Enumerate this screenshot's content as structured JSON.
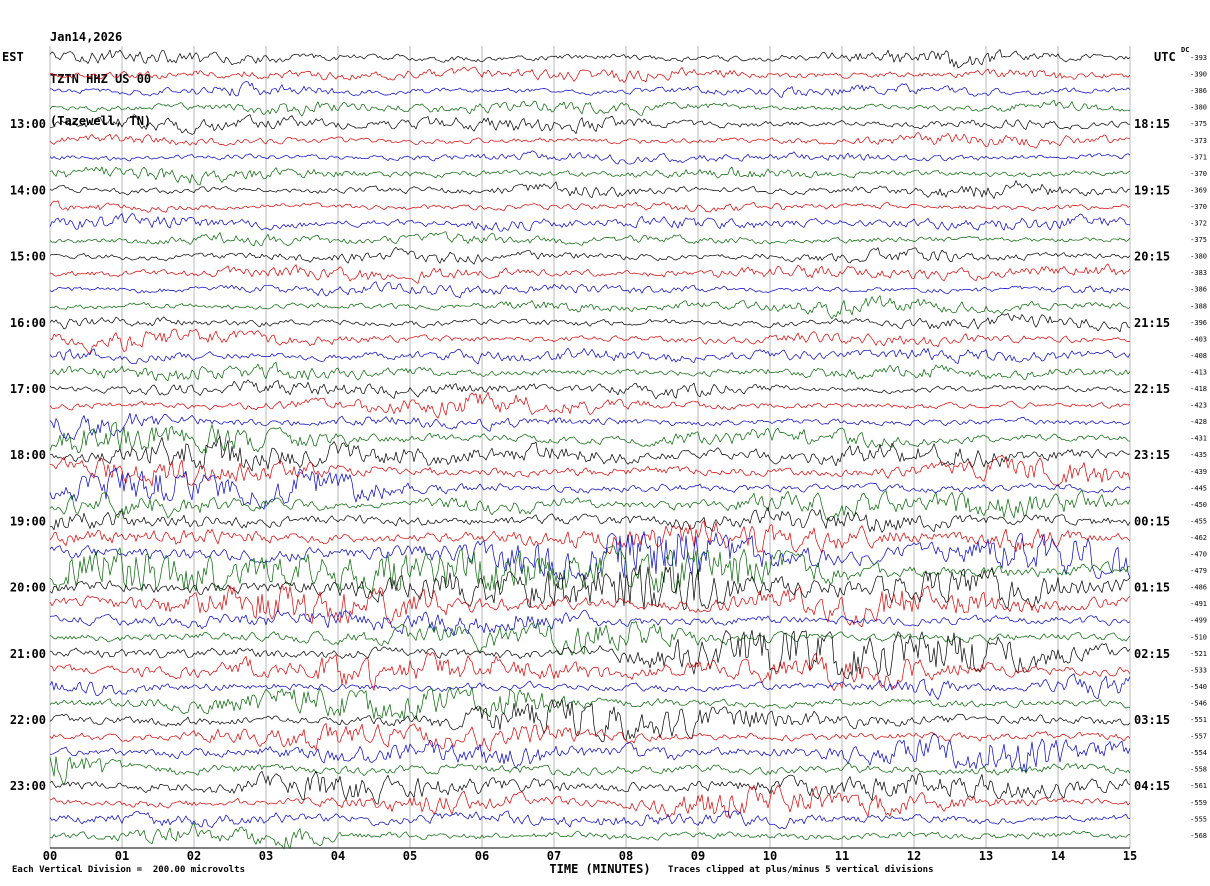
{
  "title": {
    "date": "Jan14,2026",
    "station": "TZTN HHZ US 00",
    "location": "(Tazewell, TN)"
  },
  "axes": {
    "left_header": "EST",
    "right_header": "UTC",
    "dc_header": "DC",
    "x_ticks": [
      "00",
      "01",
      "02",
      "03",
      "04",
      "05",
      "06",
      "07",
      "08",
      "09",
      "10",
      "11",
      "12",
      "13",
      "14",
      "15"
    ],
    "x_label": "TIME (MINUTES)"
  },
  "footer": {
    "division_note": "Each Vertical Division =  200.00 microvolts",
    "clip_note": "Traces clipped at plus/minus 5 vertical divisions"
  },
  "chart_data": {
    "type": "line",
    "subtype": "helicorder-seismogram",
    "minutes_per_line": 15,
    "x_range": [
      0,
      15
    ],
    "clip_divisions": 5,
    "microvolts_per_division": 200.0,
    "colors_cycle": [
      "#000000",
      "#dd0000",
      "#0000cc",
      "#006600"
    ],
    "rows": [
      {
        "est": "",
        "utc": "",
        "dc": -393,
        "amp": 3.0,
        "burst": 1.5
      },
      {
        "est": "",
        "utc": "",
        "dc": -390,
        "amp": 3.0,
        "burst": 1.5
      },
      {
        "est": "",
        "utc": "",
        "dc": -386,
        "amp": 2.8,
        "burst": 1.5
      },
      {
        "est": "",
        "utc": "",
        "dc": -380,
        "amp": 2.8,
        "burst": 1.5
      },
      {
        "est": "13:00",
        "utc": "18:15",
        "dc": -375,
        "amp": 3.0,
        "burst": 1.6
      },
      {
        "est": "",
        "utc": "",
        "dc": -373,
        "amp": 2.9,
        "burst": 1.5
      },
      {
        "est": "",
        "utc": "",
        "dc": -371,
        "amp": 2.8,
        "burst": 1.5
      },
      {
        "est": "",
        "utc": "",
        "dc": -370,
        "amp": 2.8,
        "burst": 1.5
      },
      {
        "est": "14:00",
        "utc": "19:15",
        "dc": -369,
        "amp": 3.2,
        "burst": 1.8
      },
      {
        "est": "",
        "utc": "",
        "dc": -370,
        "amp": 3.0,
        "burst": 1.6
      },
      {
        "est": "",
        "utc": "",
        "dc": -372,
        "amp": 3.0,
        "burst": 1.6
      },
      {
        "est": "",
        "utc": "",
        "dc": -375,
        "amp": 3.0,
        "burst": 1.6
      },
      {
        "est": "15:00",
        "utc": "20:15",
        "dc": -380,
        "amp": 3.0,
        "burst": 1.5
      },
      {
        "est": "",
        "utc": "",
        "dc": -383,
        "amp": 2.9,
        "burst": 1.5
      },
      {
        "est": "",
        "utc": "",
        "dc": -386,
        "amp": 2.9,
        "burst": 1.5
      },
      {
        "est": "",
        "utc": "",
        "dc": -388,
        "amp": 3.0,
        "burst": 1.5
      },
      {
        "est": "16:00",
        "utc": "21:15",
        "dc": -396,
        "amp": 3.1,
        "burst": 1.7
      },
      {
        "est": "",
        "utc": "",
        "dc": -403,
        "amp": 3.0,
        "burst": 1.6
      },
      {
        "est": "",
        "utc": "",
        "dc": -408,
        "amp": 3.0,
        "burst": 1.6
      },
      {
        "est": "",
        "utc": "",
        "dc": -413,
        "amp": 3.1,
        "burst": 1.7
      },
      {
        "est": "17:00",
        "utc": "22:15",
        "dc": -418,
        "amp": 3.2,
        "burst": 1.8
      },
      {
        "est": "",
        "utc": "",
        "dc": -423,
        "amp": 3.1,
        "burst": 1.8
      },
      {
        "est": "",
        "utc": "",
        "dc": -428,
        "amp": 3.3,
        "burst": 2.0
      },
      {
        "est": "",
        "utc": "",
        "dc": -431,
        "amp": 3.5,
        "burst": 2.2
      },
      {
        "est": "18:00",
        "utc": "23:15",
        "dc": -435,
        "amp": 4.5,
        "burst": 2.8
      },
      {
        "est": "",
        "utc": "",
        "dc": -439,
        "amp": 4.5,
        "burst": 2.8
      },
      {
        "est": "",
        "utc": "",
        "dc": -445,
        "amp": 4.0,
        "burst": 2.4
      },
      {
        "est": "",
        "utc": "",
        "dc": -450,
        "amp": 4.2,
        "burst": 2.6
      },
      {
        "est": "19:00",
        "utc": "00:15",
        "dc": -455,
        "amp": 5.0,
        "burst": 3.0
      },
      {
        "est": "",
        "utc": "",
        "dc": -462,
        "amp": 4.2,
        "burst": 2.6
      },
      {
        "est": "",
        "utc": "",
        "dc": -470,
        "amp": 6.5,
        "burst": 3.8
      },
      {
        "est": "",
        "utc": "",
        "dc": -479,
        "amp": 6.5,
        "burst": 3.8
      },
      {
        "est": "20:00",
        "utc": "01:15",
        "dc": -486,
        "amp": 6.5,
        "burst": 3.8
      },
      {
        "est": "",
        "utc": "",
        "dc": -491,
        "amp": 5.8,
        "burst": 3.5
      },
      {
        "est": "",
        "utc": "",
        "dc": -499,
        "amp": 4.5,
        "burst": 2.8
      },
      {
        "est": "",
        "utc": "",
        "dc": -510,
        "amp": 4.2,
        "burst": 2.6
      },
      {
        "est": "21:00",
        "utc": "02:15",
        "dc": -521,
        "amp": 5.2,
        "burst": 3.2
      },
      {
        "est": "",
        "utc": "",
        "dc": -533,
        "amp": 4.8,
        "burst": 3.0
      },
      {
        "est": "",
        "utc": "",
        "dc": -540,
        "amp": 4.0,
        "burst": 2.4
      },
      {
        "est": "",
        "utc": "",
        "dc": -546,
        "amp": 4.0,
        "burst": 2.4
      },
      {
        "est": "22:00",
        "utc": "03:15",
        "dc": -551,
        "amp": 4.8,
        "burst": 3.0
      },
      {
        "est": "",
        "utc": "",
        "dc": -557,
        "amp": 4.0,
        "burst": 2.4
      },
      {
        "est": "",
        "utc": "",
        "dc": -554,
        "amp": 4.2,
        "burst": 2.6
      },
      {
        "est": "",
        "utc": "",
        "dc": -558,
        "amp": 4.8,
        "burst": 3.0
      },
      {
        "est": "23:00",
        "utc": "04:15",
        "dc": -561,
        "amp": 4.4,
        "burst": 2.8
      },
      {
        "est": "",
        "utc": "",
        "dc": -559,
        "amp": 4.0,
        "burst": 2.4
      },
      {
        "est": "",
        "utc": "",
        "dc": -555,
        "amp": 3.6,
        "burst": 2.0
      },
      {
        "est": "",
        "utc": "",
        "dc": -568,
        "amp": 3.6,
        "burst": 2.0
      }
    ]
  }
}
